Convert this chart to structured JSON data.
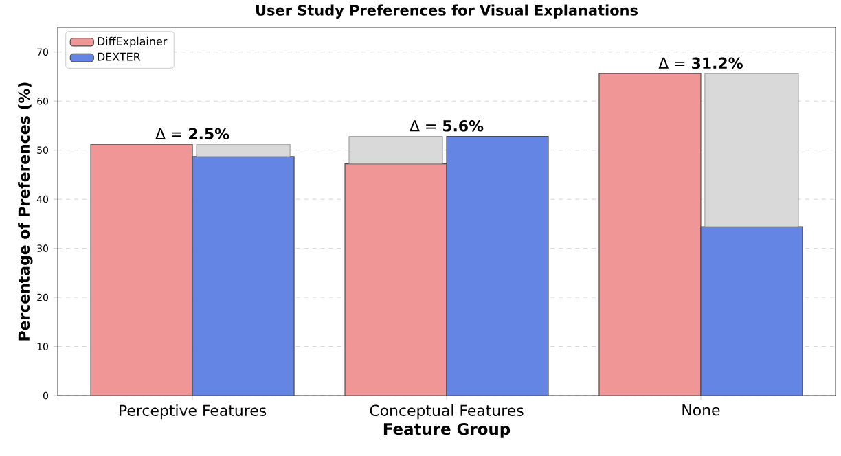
{
  "chart_data": {
    "type": "bar",
    "title": "User Study Preferences for Visual Explanations",
    "xlabel": "Feature Group",
    "ylabel": "Percentage of Preferences (%)",
    "categories": [
      "Perceptive Features",
      "Conceptual Features",
      "None"
    ],
    "series": [
      {
        "name": "DiffExplainer",
        "color": "#f19697",
        "values": [
          51.2,
          47.2,
          65.6
        ]
      },
      {
        "name": "DEXTER",
        "color": "#6585e4",
        "values": [
          48.7,
          52.8,
          34.4
        ]
      },
      {
        "color": "#d9d9d9",
        "base": [
          48.7,
          47.2,
          34.4
        ],
        "values": [
          2.5,
          5.6,
          31.2
        ]
      }
    ],
    "annotations": [
      {
        "text": "Δ = **2.5%**",
        "x": "Perceptive Features",
        "y": 51.2
      },
      {
        "text": "Δ = **5.6%**",
        "x": "Conceptual Features",
        "y": 52.8
      },
      {
        "text": "Δ = **31.2%**",
        "x": "None",
        "y": 65.6
      }
    ],
    "ylim": [
      0,
      75
    ],
    "yticks": [
      0,
      10,
      20,
      30,
      40,
      50,
      60,
      70
    ],
    "grid": "y",
    "legend": "top left"
  }
}
